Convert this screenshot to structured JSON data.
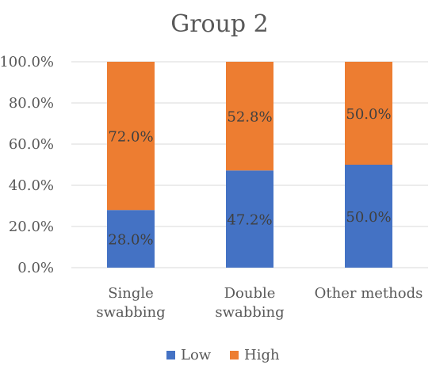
{
  "chart_data": {
    "type": "bar",
    "stacked": true,
    "title": "Group 2",
    "categories": [
      [
        "Single",
        "swabbing"
      ],
      [
        "Double",
        "swabbing"
      ],
      [
        "Other methods"
      ]
    ],
    "series": [
      {
        "name": "Low",
        "color": "#4472C4",
        "values": [
          28.0,
          47.2,
          50.0
        ],
        "labels": [
          "28.0%",
          "47.2%",
          "50.0%"
        ]
      },
      {
        "name": "High",
        "color": "#ED7D31",
        "values": [
          72.0,
          52.8,
          50.0
        ],
        "labels": [
          "72.0%",
          "52.8%",
          "50.0%"
        ]
      }
    ],
    "yticks": [
      "0.0%",
      "20.0%",
      "40.0%",
      "60.0%",
      "80.0%",
      "100.0%"
    ],
    "ylim": [
      0,
      100
    ],
    "grid": true,
    "legend_position": "bottom"
  }
}
